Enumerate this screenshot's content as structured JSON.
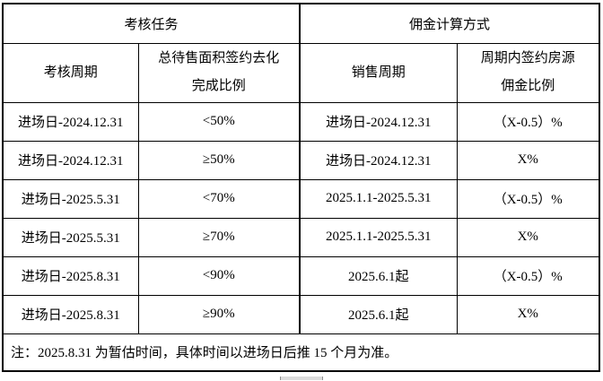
{
  "colors": {
    "background": "#ffffff",
    "border": "#000000",
    "text": "#000000",
    "handle": "#dcdcdc"
  },
  "table": {
    "header_groups": [
      {
        "label": "考核任务"
      },
      {
        "label": "佣金计算方式"
      }
    ],
    "column_headers": [
      {
        "lines": [
          "考核周期"
        ]
      },
      {
        "lines": [
          "总待售面积签约去化",
          "完成比例"
        ]
      },
      {
        "lines": [
          "销售周期"
        ]
      },
      {
        "lines": [
          "周期内签约房源",
          "佣金比例"
        ]
      }
    ],
    "rows": [
      [
        "进场日-2024.12.31",
        "<50%",
        "进场日-2024.12.31",
        "（X-0.5）%"
      ],
      [
        "进场日-2024.12.31",
        "≥50%",
        "进场日-2024.12.31",
        "X%"
      ],
      [
        "进场日-2025.5.31",
        "<70%",
        "2025.1.1-2025.5.31",
        "（X-0.5）%"
      ],
      [
        "进场日-2025.5.31",
        "≥70%",
        "2025.1.1-2025.5.31",
        "X%"
      ],
      [
        "进场日-2025.8.31",
        "<90%",
        "2025.6.1起",
        "（X-0.5）%"
      ],
      [
        "进场日-2025.8.31",
        "≥90%",
        "2025.6.1起",
        "X%"
      ]
    ],
    "note": "注：2025.8.31 为暂估时间，具体时间以进场日后推 15 个月为准。"
  }
}
